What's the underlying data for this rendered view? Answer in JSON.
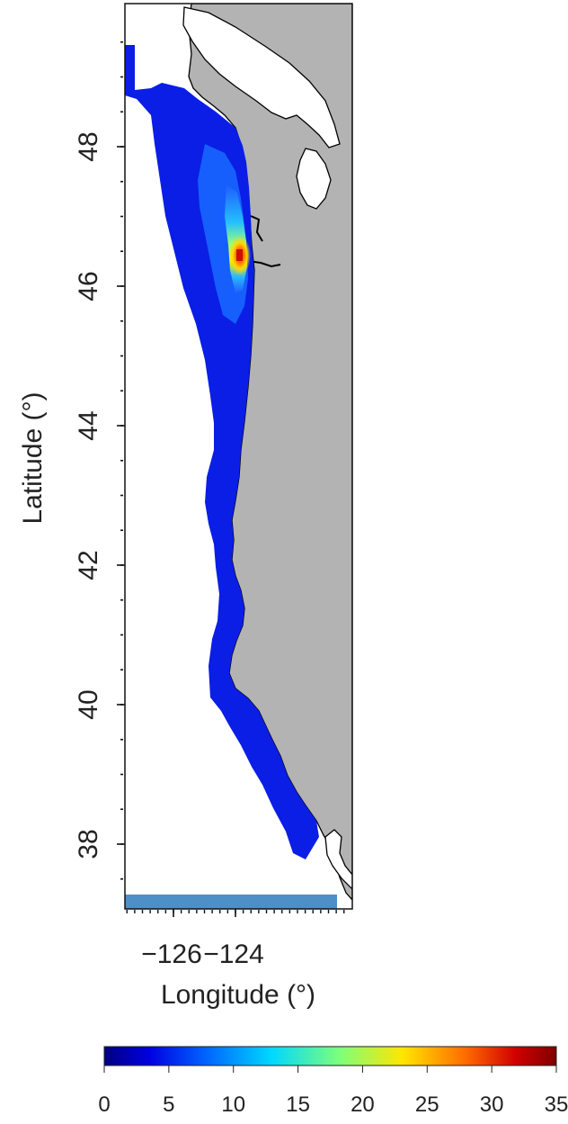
{
  "map": {
    "x_axis_title": "Longitude (°)",
    "y_axis_title": "Latitude (°)",
    "x_ticks": [
      {
        "value": -126,
        "label": "−126"
      },
      {
        "value": -124,
        "label": "−124"
      }
    ],
    "y_ticks": [
      {
        "value": 38,
        "label": "38"
      },
      {
        "value": 40,
        "label": "40"
      },
      {
        "value": 42,
        "label": "42"
      },
      {
        "value": 44,
        "label": "44"
      },
      {
        "value": 46,
        "label": "46"
      },
      {
        "value": 48,
        "label": "48"
      }
    ],
    "colors": {
      "land": "#b3b3b3",
      "coast": "#000000",
      "ocean": "#ffffff",
      "low_band": "#4f8fc8"
    }
  },
  "colorbar": {
    "ticks": [
      "0",
      "5",
      "10",
      "15",
      "20",
      "25",
      "30",
      "35"
    ],
    "range": [
      0,
      35
    ],
    "stops": [
      "#000080",
      "#0000e0",
      "#0060ff",
      "#00d8ff",
      "#7cff7c",
      "#ffe600",
      "#ff6a00",
      "#d00000",
      "#800000"
    ]
  }
}
